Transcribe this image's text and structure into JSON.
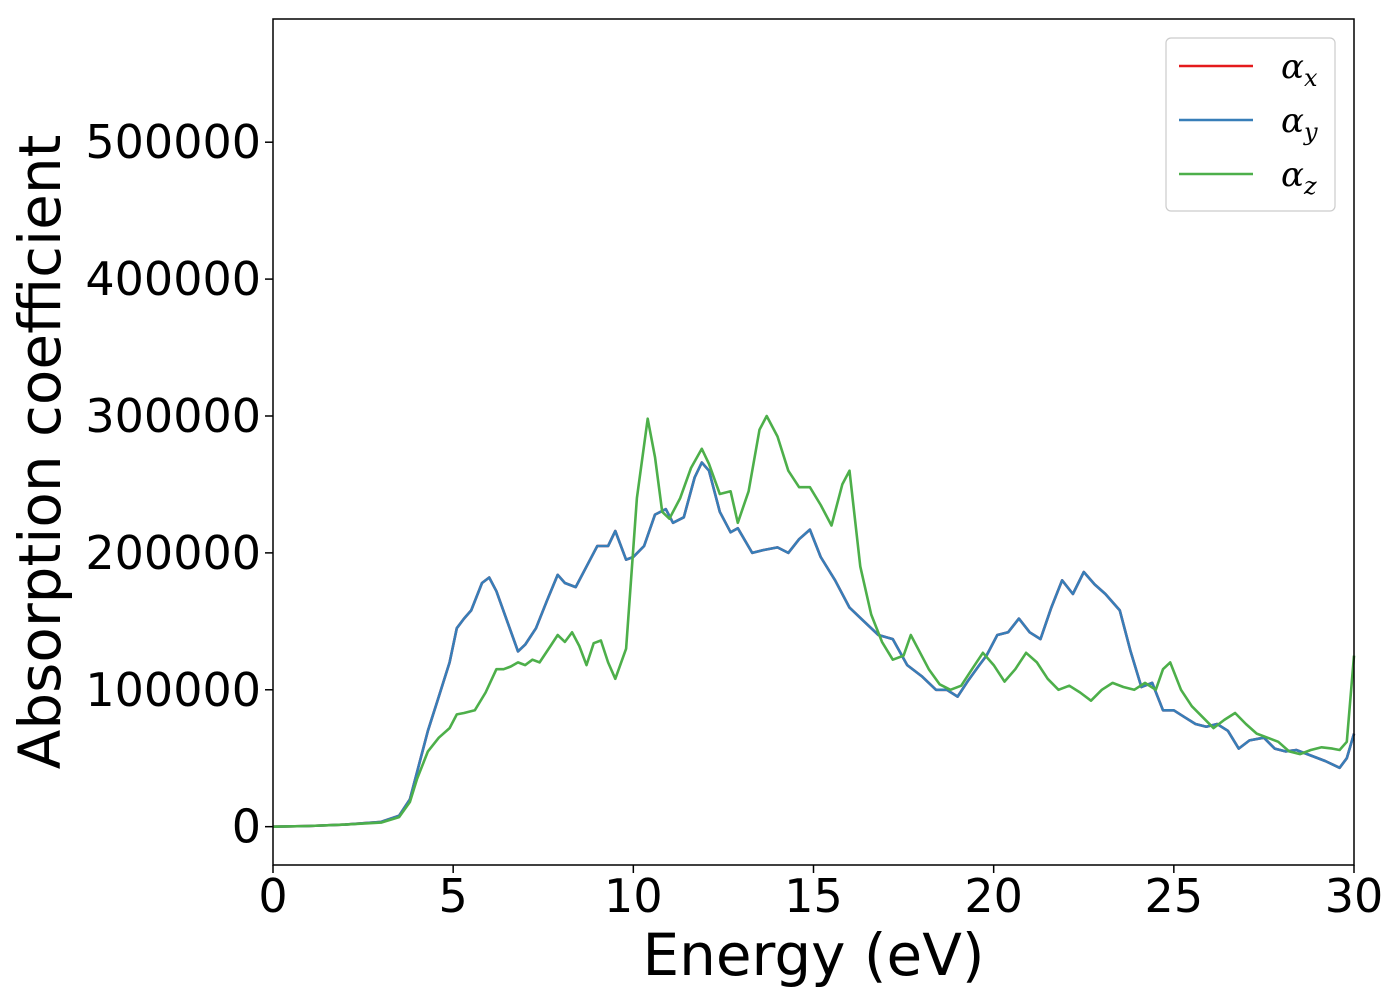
{
  "chart_data": {
    "type": "line",
    "title": "",
    "xlabel": "Energy (eV)",
    "ylabel": "Absorption coefficient",
    "xlim": [
      0,
      30
    ],
    "ylim": [
      -28000,
      590000
    ],
    "xticks": [
      0,
      5,
      10,
      15,
      20,
      25,
      30
    ],
    "yticks": [
      0,
      100000,
      200000,
      300000,
      400000,
      500000
    ],
    "grid": false,
    "legend_position": "top-right",
    "series": [
      {
        "name": "α_x",
        "symbol": "α",
        "subscript": "x",
        "color": "#e41a1c",
        "x": [
          0,
          1,
          2,
          3,
          3.5,
          3.8,
          4,
          4.3,
          4.6,
          4.9,
          5.1,
          5.3,
          5.5,
          5.8,
          6,
          6.2,
          6.5,
          6.8,
          7,
          7.3,
          7.6,
          7.9,
          8.1,
          8.4,
          8.8,
          9,
          9.3,
          9.5,
          9.8,
          10,
          10.3,
          10.6,
          10.9,
          11.1,
          11.4,
          11.7,
          11.9,
          12.1,
          12.4,
          12.7,
          12.9,
          13.3,
          13.6,
          14,
          14.3,
          14.6,
          14.9,
          15.2,
          15.6,
          16,
          16.4,
          16.8,
          17.2,
          17.6,
          18,
          18.4,
          18.7,
          19,
          19.3,
          19.6,
          19.8,
          20.1,
          20.4,
          20.7,
          21,
          21.3,
          21.6,
          21.9,
          22.2,
          22.5,
          22.8,
          23.1,
          23.5,
          23.8,
          24.1,
          24.4,
          24.7,
          25,
          25.3,
          25.6,
          25.9,
          26.2,
          26.5,
          26.8,
          27.1,
          27.5,
          27.8,
          28.1,
          28.4,
          28.8,
          29.2,
          29.6,
          29.8,
          30
        ],
        "y": [
          0,
          500,
          1500,
          3500,
          8000,
          20000,
          40000,
          70000,
          95000,
          120000,
          145000,
          152000,
          158000,
          178000,
          182000,
          172000,
          150000,
          128000,
          133000,
          145000,
          165000,
          184000,
          178000,
          175000,
          195000,
          205000,
          205000,
          216000,
          195000,
          197000,
          205000,
          228000,
          232000,
          222000,
          226000,
          255000,
          266000,
          260000,
          230000,
          215000,
          218000,
          200000,
          202000,
          204000,
          200000,
          210000,
          217000,
          197000,
          180000,
          160000,
          150000,
          140000,
          137000,
          118000,
          110000,
          100000,
          100000,
          95000,
          107000,
          118000,
          125000,
          140000,
          142000,
          152000,
          142000,
          137000,
          160000,
          180000,
          170000,
          186000,
          177000,
          170000,
          158000,
          128000,
          102000,
          105000,
          85000,
          85000,
          80000,
          75000,
          73000,
          75000,
          70000,
          57000,
          63000,
          65000,
          57000,
          55000,
          56000,
          52000,
          48000,
          43000,
          50000,
          68000
        ]
      },
      {
        "name": "α_y",
        "symbol": "α",
        "subscript": "y",
        "color": "#377eb8",
        "x": [
          0,
          1,
          2,
          3,
          3.5,
          3.8,
          4,
          4.3,
          4.6,
          4.9,
          5.1,
          5.3,
          5.5,
          5.8,
          6,
          6.2,
          6.5,
          6.8,
          7,
          7.3,
          7.6,
          7.9,
          8.1,
          8.4,
          8.8,
          9,
          9.3,
          9.5,
          9.8,
          10,
          10.3,
          10.6,
          10.9,
          11.1,
          11.4,
          11.7,
          11.9,
          12.1,
          12.4,
          12.7,
          12.9,
          13.3,
          13.6,
          14,
          14.3,
          14.6,
          14.9,
          15.2,
          15.6,
          16,
          16.4,
          16.8,
          17.2,
          17.6,
          18,
          18.4,
          18.7,
          19,
          19.3,
          19.6,
          19.8,
          20.1,
          20.4,
          20.7,
          21,
          21.3,
          21.6,
          21.9,
          22.2,
          22.5,
          22.8,
          23.1,
          23.5,
          23.8,
          24.1,
          24.4,
          24.7,
          25,
          25.3,
          25.6,
          25.9,
          26.2,
          26.5,
          26.8,
          27.1,
          27.5,
          27.8,
          28.1,
          28.4,
          28.8,
          29.2,
          29.6,
          29.8,
          30
        ],
        "y": [
          0,
          500,
          1500,
          3500,
          8000,
          20000,
          40000,
          70000,
          95000,
          120000,
          145000,
          152000,
          158000,
          178000,
          182000,
          172000,
          150000,
          128000,
          133000,
          145000,
          165000,
          184000,
          178000,
          175000,
          195000,
          205000,
          205000,
          216000,
          195000,
          197000,
          205000,
          228000,
          232000,
          222000,
          226000,
          255000,
          266000,
          260000,
          230000,
          215000,
          218000,
          200000,
          202000,
          204000,
          200000,
          210000,
          217000,
          197000,
          180000,
          160000,
          150000,
          140000,
          137000,
          118000,
          110000,
          100000,
          100000,
          95000,
          107000,
          118000,
          125000,
          140000,
          142000,
          152000,
          142000,
          137000,
          160000,
          180000,
          170000,
          186000,
          177000,
          170000,
          158000,
          128000,
          102000,
          105000,
          85000,
          85000,
          80000,
          75000,
          73000,
          75000,
          70000,
          57000,
          63000,
          65000,
          57000,
          55000,
          56000,
          52000,
          48000,
          43000,
          50000,
          68000
        ]
      },
      {
        "name": "α_z",
        "symbol": "α",
        "subscript": "z",
        "color": "#4daf4a",
        "x": [
          0,
          1,
          2,
          3,
          3.5,
          3.8,
          4,
          4.3,
          4.6,
          4.9,
          5.1,
          5.3,
          5.6,
          5.9,
          6.2,
          6.4,
          6.6,
          6.8,
          7,
          7.2,
          7.4,
          7.7,
          7.9,
          8.1,
          8.3,
          8.5,
          8.7,
          8.9,
          9.1,
          9.3,
          9.5,
          9.8,
          10.1,
          10.4,
          10.6,
          10.8,
          11,
          11.3,
          11.6,
          11.9,
          12.1,
          12.4,
          12.7,
          12.9,
          13.2,
          13.5,
          13.7,
          14,
          14.3,
          14.6,
          14.9,
          15.2,
          15.5,
          15.8,
          16,
          16.3,
          16.6,
          16.9,
          17.2,
          17.5,
          17.7,
          17.9,
          18.2,
          18.5,
          18.8,
          19.1,
          19.4,
          19.7,
          20,
          20.3,
          20.6,
          20.9,
          21.2,
          21.5,
          21.8,
          22.1,
          22.4,
          22.7,
          23,
          23.3,
          23.6,
          23.9,
          24.2,
          24.5,
          24.7,
          24.9,
          25.2,
          25.5,
          25.8,
          26.1,
          26.4,
          26.7,
          27,
          27.3,
          27.6,
          27.9,
          28.2,
          28.5,
          28.8,
          29.1,
          29.4,
          29.6,
          29.8,
          30
        ],
        "y": [
          0,
          500,
          1500,
          3000,
          7000,
          18000,
          35000,
          55000,
          65000,
          72000,
          82000,
          83000,
          85000,
          98000,
          115000,
          115000,
          117000,
          120000,
          118000,
          122000,
          120000,
          132000,
          140000,
          135000,
          142000,
          132000,
          118000,
          134000,
          136000,
          120000,
          108000,
          130000,
          240000,
          298000,
          270000,
          230000,
          225000,
          240000,
          262000,
          276000,
          265000,
          243000,
          245000,
          222000,
          245000,
          290000,
          300000,
          285000,
          260000,
          248000,
          248000,
          235000,
          220000,
          250000,
          260000,
          190000,
          155000,
          135000,
          122000,
          125000,
          140000,
          130000,
          115000,
          104000,
          100000,
          103000,
          115000,
          127000,
          118000,
          106000,
          115000,
          127000,
          120000,
          108000,
          100000,
          103000,
          98000,
          92000,
          100000,
          105000,
          102000,
          100000,
          105000,
          100000,
          115000,
          120000,
          100000,
          88000,
          80000,
          72000,
          78000,
          83000,
          75000,
          68000,
          65000,
          62000,
          55000,
          53000,
          56000,
          58000,
          57000,
          56000,
          62000,
          125000
        ]
      }
    ]
  }
}
